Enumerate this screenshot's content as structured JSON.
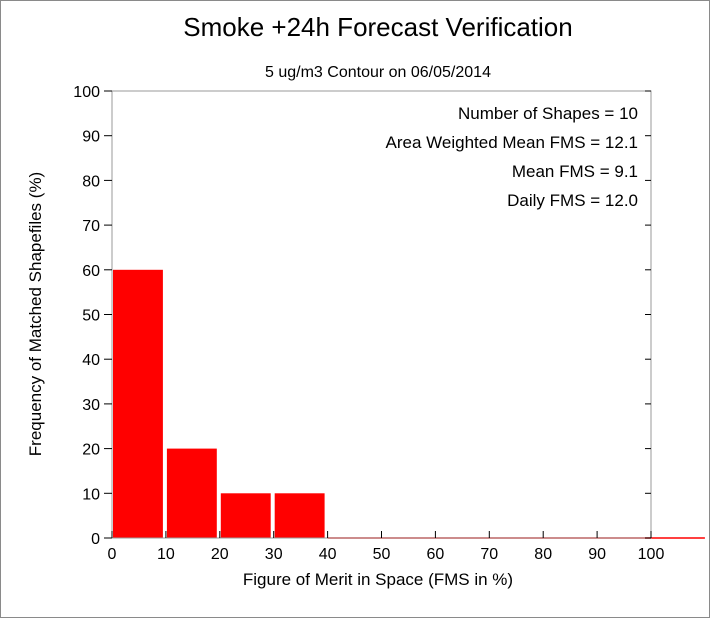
{
  "chart_data": {
    "type": "bar",
    "title": "Smoke +24h Forecast Verification",
    "subtitle": "5 ug/m3 Contour on 06/05/2014",
    "xlabel": "Figure of Merit in Space (FMS in %)",
    "ylabel": "Frequency of Matched Shapefiles (%)",
    "xlim": [
      0,
      110
    ],
    "ylim": [
      0,
      100
    ],
    "xticks": [
      "0",
      "10",
      "20",
      "30",
      "40",
      "50",
      "60",
      "70",
      "80",
      "90",
      "100"
    ],
    "yticks": [
      "0",
      "10",
      "20",
      "30",
      "40",
      "50",
      "60",
      "70",
      "80",
      "90",
      "100"
    ],
    "bins": [
      {
        "start": 0,
        "end": 10,
        "value": 60
      },
      {
        "start": 10,
        "end": 20,
        "value": 20
      },
      {
        "start": 20,
        "end": 30,
        "value": 10
      },
      {
        "start": 30,
        "end": 40,
        "value": 10
      },
      {
        "start": 40,
        "end": 50,
        "value": 0
      },
      {
        "start": 50,
        "end": 60,
        "value": 0
      },
      {
        "start": 60,
        "end": 70,
        "value": 0
      },
      {
        "start": 70,
        "end": 80,
        "value": 0
      },
      {
        "start": 80,
        "end": 90,
        "value": 0
      },
      {
        "start": 90,
        "end": 100,
        "value": 0
      },
      {
        "start": 100,
        "end": 110,
        "value": 0
      }
    ],
    "bar_color": "#ff0000",
    "grid": false,
    "annotations": [
      "Number of Shapes = 10",
      "Area Weighted Mean FMS = 12.1",
      "Mean FMS = 9.1",
      "Daily FMS = 12.0"
    ]
  }
}
